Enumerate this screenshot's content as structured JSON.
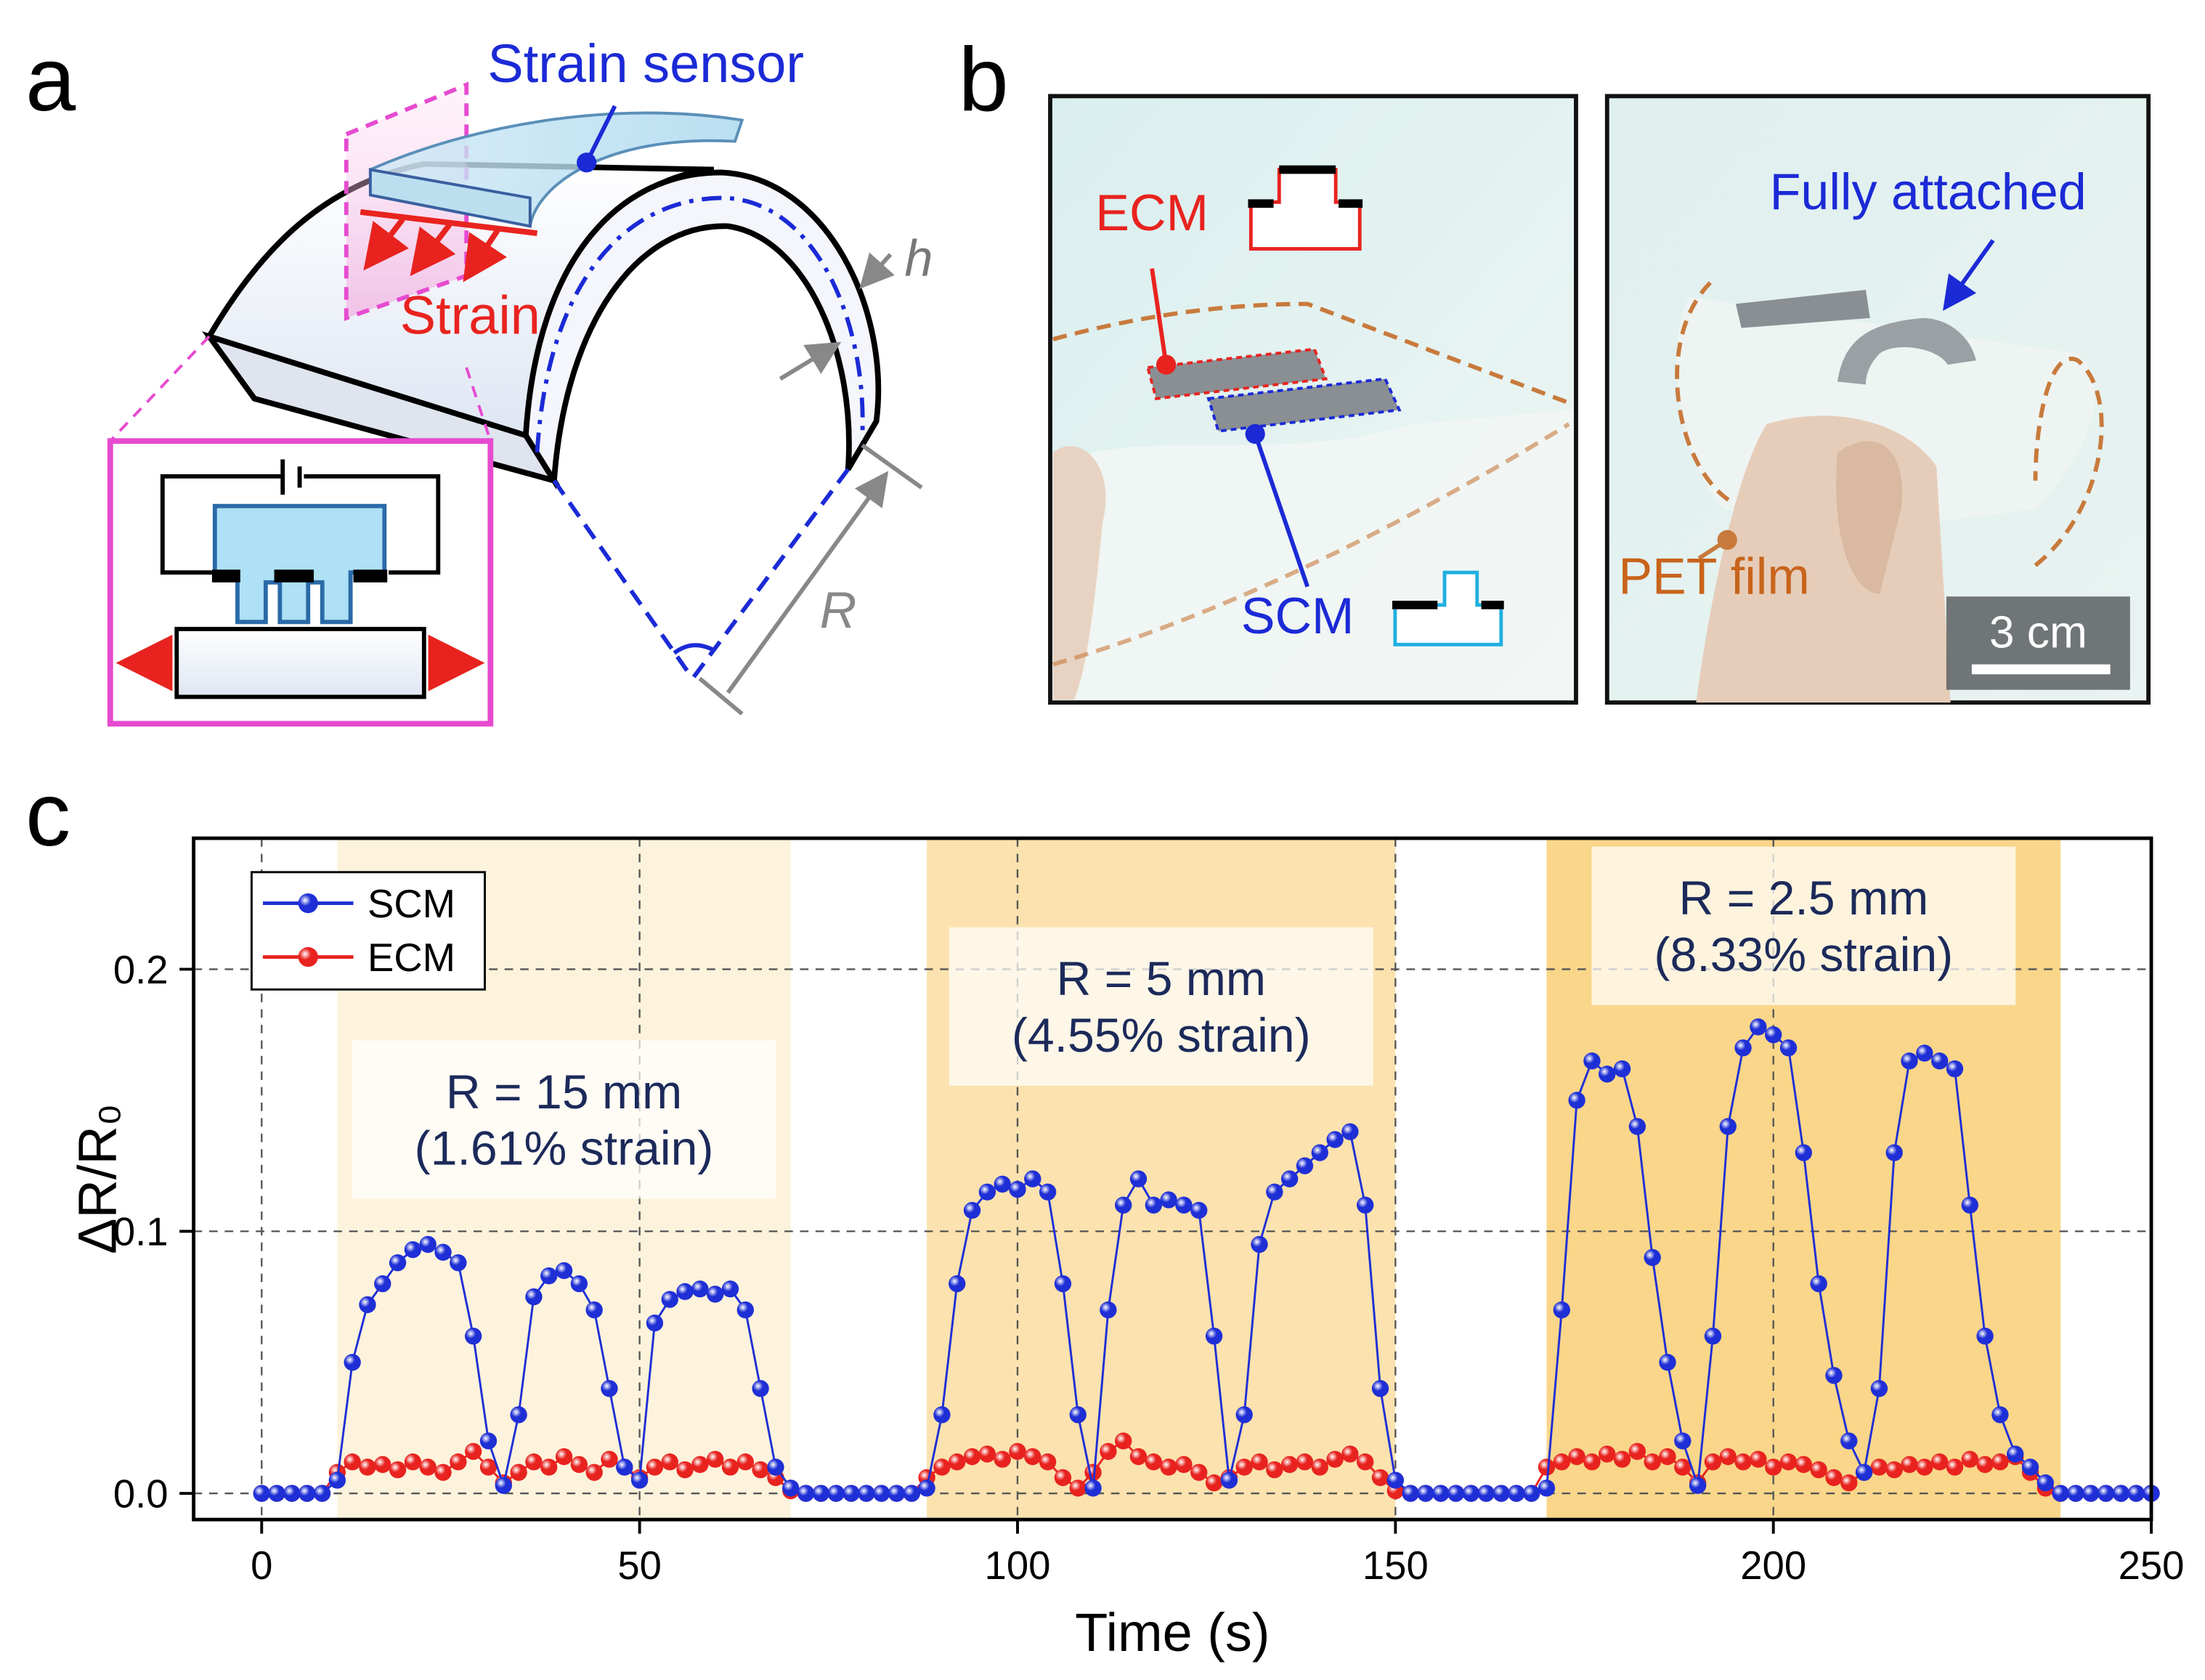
{
  "panel_a": {
    "label": "a",
    "strain_sensor": "Strain sensor",
    "strain": "Strain",
    "h": "h",
    "R": "R"
  },
  "panel_b": {
    "label": "b",
    "ecm": "ECM",
    "scm": "SCM",
    "fully_attached": "Fully attached",
    "pet_film": "PET film",
    "scale_bar": "3 cm"
  },
  "panel_c": {
    "label": "c"
  },
  "chart_data": {
    "type": "scatter",
    "xlabel": "Time (s)",
    "ylabel": "ΔR/R₀",
    "xlim": [
      -9,
      250
    ],
    "ylim": [
      -0.01,
      0.25
    ],
    "xticks": [
      0,
      50,
      100,
      150,
      200,
      250
    ],
    "yticks": [
      {
        "value": 0,
        "label": "0.0"
      },
      0.1,
      0.2
    ],
    "grid": true,
    "legend": "upper-left",
    "regions": [
      {
        "xmin": 10,
        "xmax": 70,
        "color": "#fdf3dc",
        "label": [
          "R = 15 mm",
          "(1.61% strain)"
        ]
      },
      {
        "xmin": 88,
        "xmax": 150,
        "color": "#fbe2ae",
        "label": [
          "R = 5 mm",
          "(4.55% strain)"
        ]
      },
      {
        "xmin": 170,
        "xmax": 238,
        "color": "#f9d68a",
        "label": [
          "R = 2.5 mm",
          "(8.33% strain)"
        ]
      }
    ],
    "x": [
      0,
      2,
      4,
      6,
      8,
      10,
      12,
      14,
      16,
      18,
      20,
      22,
      24,
      26,
      28,
      30,
      32,
      34,
      36,
      38,
      40,
      42,
      44,
      46,
      48,
      50,
      52,
      54,
      56,
      58,
      60,
      62,
      64,
      66,
      68,
      70,
      72,
      74,
      76,
      78,
      80,
      82,
      84,
      86,
      88,
      90,
      92,
      94,
      96,
      98,
      100,
      102,
      104,
      106,
      108,
      110,
      112,
      114,
      116,
      118,
      120,
      122,
      124,
      126,
      128,
      130,
      132,
      134,
      136,
      138,
      140,
      142,
      144,
      146,
      148,
      150,
      152,
      154,
      156,
      158,
      160,
      162,
      164,
      166,
      168,
      170,
      172,
      174,
      176,
      178,
      180,
      182,
      184,
      186,
      188,
      190,
      192,
      194,
      196,
      198,
      200,
      202,
      204,
      206,
      208,
      210,
      212,
      214,
      216,
      218,
      220,
      222,
      224,
      226,
      228,
      230,
      232,
      234,
      236,
      238,
      240,
      242,
      244,
      246,
      248,
      250
    ],
    "series": [
      {
        "name": "SCM",
        "color": "#1f2fd6",
        "values": [
          0,
          0,
          0,
          0,
          0,
          0.005,
          0.05,
          0.072,
          0.08,
          0.088,
          0.093,
          0.095,
          0.092,
          0.088,
          0.06,
          0.02,
          0.003,
          0.03,
          0.075,
          0.083,
          0.085,
          0.08,
          0.07,
          0.04,
          0.01,
          0.005,
          0.065,
          0.074,
          0.077,
          0.078,
          0.076,
          0.078,
          0.07,
          0.04,
          0.01,
          0.002,
          0,
          0,
          0,
          0,
          0,
          0,
          0,
          0,
          0.002,
          0.03,
          0.08,
          0.108,
          0.115,
          0.118,
          0.116,
          0.12,
          0.115,
          0.08,
          0.03,
          0.002,
          0.07,
          0.11,
          0.12,
          0.11,
          0.112,
          0.11,
          0.108,
          0.06,
          0.005,
          0.03,
          0.095,
          0.115,
          0.12,
          0.125,
          0.13,
          0.135,
          0.138,
          0.11,
          0.04,
          0.005,
          0,
          0,
          0,
          0,
          0,
          0,
          0,
          0,
          0,
          0.002,
          0.07,
          0.15,
          0.165,
          0.16,
          0.162,
          0.14,
          0.09,
          0.05,
          0.02,
          0.003,
          0.06,
          0.14,
          0.17,
          0.178,
          0.175,
          0.17,
          0.13,
          0.08,
          0.045,
          0.02,
          0.008,
          0.04,
          0.13,
          0.165,
          0.168,
          0.165,
          0.162,
          0.11,
          0.06,
          0.03,
          0.015,
          0.01,
          0.004,
          0,
          0,
          0,
          0,
          0,
          0,
          0
        ]
      },
      {
        "name": "ECM",
        "color": "#e8231f",
        "values": [
          0,
          0,
          0,
          0,
          0,
          0.008,
          0.012,
          0.01,
          0.011,
          0.009,
          0.012,
          0.01,
          0.008,
          0.012,
          0.016,
          0.01,
          0.004,
          0.008,
          0.012,
          0.01,
          0.014,
          0.011,
          0.008,
          0.013,
          0.01,
          0.006,
          0.01,
          0.012,
          0.009,
          0.011,
          0.013,
          0.01,
          0.012,
          0.009,
          0.006,
          0.001,
          0,
          0,
          0,
          0,
          0,
          0,
          0,
          0,
          0.006,
          0.01,
          0.012,
          0.014,
          0.015,
          0.013,
          0.016,
          0.014,
          0.012,
          0.006,
          0.002,
          0.008,
          0.016,
          0.02,
          0.014,
          0.012,
          0.01,
          0.011,
          0.008,
          0.004,
          0.006,
          0.01,
          0.012,
          0.009,
          0.011,
          0.012,
          0.01,
          0.013,
          0.015,
          0.012,
          0.006,
          0.001,
          0,
          0,
          0,
          0,
          0,
          0,
          0,
          0,
          0,
          0.01,
          0.012,
          0.014,
          0.012,
          0.015,
          0.013,
          0.016,
          0.012,
          0.014,
          0.01,
          0.004,
          0.012,
          0.014,
          0.012,
          0.013,
          0.01,
          0.012,
          0.011,
          0.009,
          0.006,
          0.004,
          0.008,
          0.01,
          0.009,
          0.011,
          0.01,
          0.012,
          0.01,
          0.013,
          0.011,
          0.012,
          0.014,
          0.008,
          0.002,
          0,
          0,
          0,
          0,
          0,
          0,
          0
        ]
      }
    ]
  }
}
